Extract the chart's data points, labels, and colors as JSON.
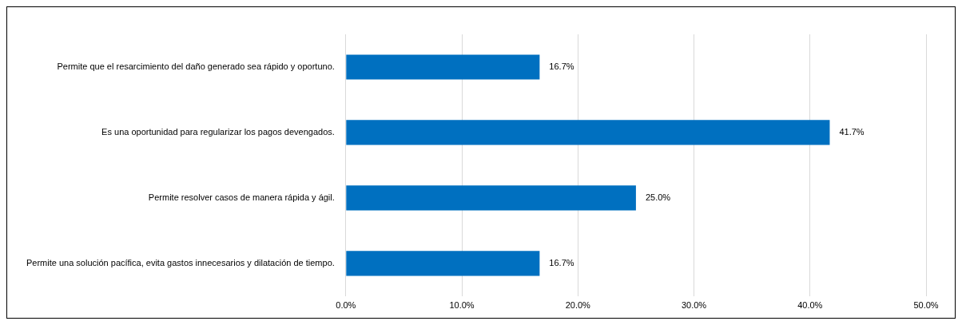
{
  "chart_data": {
    "type": "bar",
    "orientation": "horizontal",
    "categories": [
      "Permite que el resarcimiento del daño generado sea rápido y oportuno.",
      "Es una oportunidad para regularizar los pagos devengados.",
      "Permite resolver casos de manera rápida y ágil.",
      "Permite una solución pacífica, evita gastos innecesarios y dilatación de tiempo."
    ],
    "values": [
      16.7,
      41.7,
      25.0,
      16.7
    ],
    "value_labels": [
      "16.7%",
      "41.7%",
      "25.0%",
      "16.7%"
    ],
    "color": "#0070c0",
    "xlim": [
      0,
      50
    ],
    "xticks": [
      {
        "value": 0,
        "label": "0.0%"
      },
      {
        "value": 10,
        "label": "10.0%"
      },
      {
        "value": 20,
        "label": "20.0%"
      },
      {
        "value": 30,
        "label": "30.0%"
      },
      {
        "value": 40,
        "label": "40.0%"
      },
      {
        "value": 50,
        "label": "50.0%"
      }
    ],
    "grid": "x",
    "legend": false
  }
}
